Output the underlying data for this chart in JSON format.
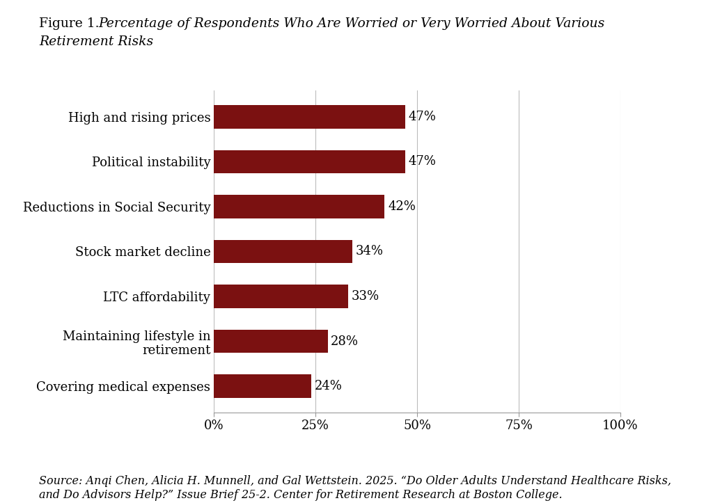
{
  "categories": [
    "Covering medical expenses",
    "Maintaining lifestyle in\nretirement",
    "LTC affordability",
    "Stock market decline",
    "Reductions in Social Security",
    "Political instability",
    "High and rising prices"
  ],
  "values": [
    24,
    28,
    33,
    34,
    42,
    47,
    47
  ],
  "bar_color": "#7B1111",
  "background_color": "#ffffff",
  "xlim": [
    0,
    100
  ],
  "xticks": [
    0,
    25,
    50,
    75,
    100
  ],
  "xtick_labels": [
    "0%",
    "25%",
    "50%",
    "75%",
    "100%"
  ],
  "label_fontsize": 13,
  "tick_fontsize": 13,
  "bar_label_fontsize": 13,
  "title_fontsize": 13.5,
  "source_fontsize": 11.5,
  "figure1_text": "Figure 1.",
  "title_part1": "Percentage of Respondents Who Are Worried or Very Worried About Various",
  "title_part2": "Retirement Risks",
  "source_label": "Source:",
  "source_body": " Anqi Chen, Alicia H. Munnell, and Gal Wettstein. 2025. “Do Older Adults Understand Healthcare Risks,\nand Do Advisors Help?” ",
  "source_italic_part": "Issue Brief",
  "source_end": " 25-2. Center for Retirement Research at Boston College."
}
